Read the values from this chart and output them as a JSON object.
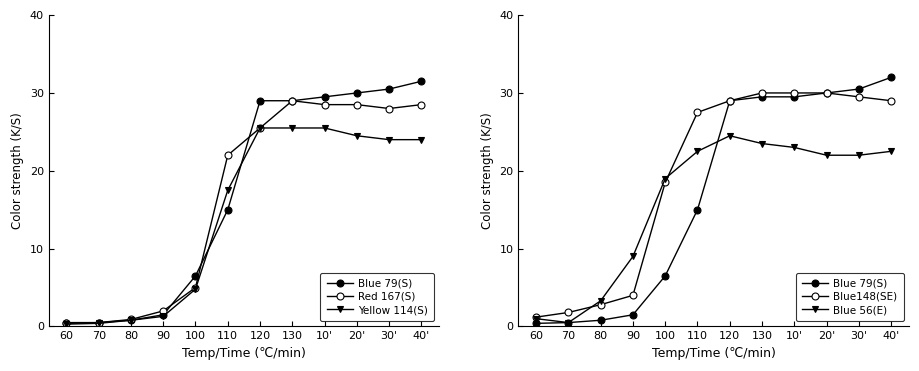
{
  "x_labels": [
    "60",
    "70",
    "80",
    "90",
    "100",
    "110",
    "120",
    "130",
    "10'",
    "20'",
    "30'",
    "40'"
  ],
  "chart1": {
    "series": [
      {
        "label": "Blue 79(S)",
        "marker": "o",
        "fillstyle": "full",
        "y": [
          0.4,
          0.5,
          0.8,
          1.5,
          6.5,
          15.0,
          29.0,
          29.0,
          29.5,
          30.0,
          30.5,
          31.5
        ]
      },
      {
        "label": "Red 167(S)",
        "marker": "o",
        "fillstyle": "none",
        "y": [
          0.5,
          0.5,
          0.9,
          2.0,
          5.0,
          22.0,
          25.5,
          29.0,
          28.5,
          28.5,
          28.0,
          28.5
        ]
      },
      {
        "label": "Yellow 114(S)",
        "marker": "v",
        "fillstyle": "full",
        "y": [
          0.3,
          0.4,
          0.8,
          1.3,
          4.8,
          17.5,
          25.5,
          25.5,
          25.5,
          24.5,
          24.0,
          24.0
        ]
      }
    ],
    "ylabel": "Color strength (K/S)",
    "xlabel": "Temp/Time (℃/min)",
    "ylim": [
      0,
      40
    ],
    "yticks": [
      0,
      10,
      20,
      30,
      40
    ]
  },
  "chart2": {
    "series": [
      {
        "label": "Blue 79(S)",
        "marker": "o",
        "fillstyle": "full",
        "y": [
          0.4,
          0.5,
          0.8,
          1.5,
          6.5,
          15.0,
          29.0,
          29.5,
          29.5,
          30.0,
          30.5,
          32.0
        ]
      },
      {
        "label": "Blue148(SE)",
        "marker": "o",
        "fillstyle": "none",
        "y": [
          1.2,
          1.8,
          2.8,
          4.0,
          18.5,
          27.5,
          29.0,
          30.0,
          30.0,
          30.0,
          29.5,
          29.0
        ]
      },
      {
        "label": "Blue 56(E)",
        "marker": "v",
        "fillstyle": "full",
        "y": [
          1.0,
          0.5,
          3.3,
          9.0,
          19.0,
          22.5,
          24.5,
          23.5,
          23.0,
          22.0,
          22.0,
          22.5
        ]
      }
    ],
    "ylabel": "Color strength (K/S)",
    "xlabel": "Temp/Time (℃/min)",
    "ylim": [
      0,
      40
    ],
    "yticks": [
      0,
      10,
      20,
      30,
      40
    ]
  },
  "legend_loc": "lower right",
  "legend_fontsize": 7.5,
  "markersize": 5,
  "linewidth": 1.0,
  "tick_labelsize": 8,
  "ylabel_fontsize": 8.5,
  "xlabel_fontsize": 9
}
